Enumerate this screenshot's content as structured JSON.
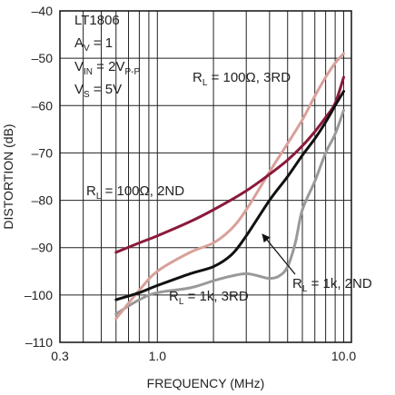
{
  "chart_data": {
    "type": "line",
    "title": "",
    "xlabel": "FREQUENCY (MHz)",
    "ylabel": "DISTORTION (dB)",
    "xscale": "log",
    "xlim": [
      0.3,
      11
    ],
    "ylim": [
      -110,
      -40
    ],
    "x_ticks": [
      0.3,
      1.0,
      10.0
    ],
    "x_tick_labels": [
      "0.3",
      "1.0",
      "10.0"
    ],
    "y_ticks": [
      -40,
      -50,
      -60,
      -70,
      -80,
      -90,
      -100,
      -110
    ],
    "y_tick_labels": [
      "–40",
      "–50",
      "–60",
      "–70",
      "–80",
      "–90",
      "–100",
      "–110"
    ],
    "grid": true,
    "conditions": [
      {
        "main": "LT1806",
        "sub": "",
        "tail": ""
      },
      {
        "main": "A",
        "sub": "V",
        "tail": " = 1"
      },
      {
        "main": "V",
        "sub": "IN",
        "tail": " = 2V",
        "sub2": "P-P"
      },
      {
        "main": "V",
        "sub": "S",
        "tail": " = 5V"
      }
    ],
    "series": [
      {
        "key": "rl100_2nd",
        "color": "#8b1a3a",
        "x": [
          0.6,
          0.8,
          1.0,
          1.5,
          2.0,
          3.0,
          4.0,
          5.0,
          6.0,
          7.0,
          8.0,
          9.0,
          10.0
        ],
        "y": [
          -91,
          -89,
          -87.5,
          -84.5,
          -82,
          -78,
          -74.5,
          -71.5,
          -68.5,
          -65.5,
          -62.5,
          -59.5,
          -54
        ]
      },
      {
        "key": "rl100_3rd",
        "color": "#d9a09a",
        "x": [
          0.6,
          0.8,
          1.0,
          1.5,
          2.0,
          2.5,
          3.0,
          4.0,
          5.0,
          6.0,
          7.0,
          8.0,
          9.0,
          10.0
        ],
        "y": [
          -105,
          -99,
          -95,
          -91,
          -89,
          -86,
          -82,
          -74,
          -68,
          -63,
          -58,
          -54,
          -51,
          -49
        ]
      },
      {
        "key": "rl1k_2nd",
        "color": "#111111",
        "x": [
          0.6,
          0.8,
          1.0,
          1.5,
          2.0,
          2.5,
          3.0,
          4.0,
          5.0,
          6.0,
          7.0,
          8.0,
          9.0,
          10.0
        ],
        "y": [
          -101,
          -99.5,
          -98,
          -95.5,
          -94,
          -91.5,
          -87.5,
          -80,
          -75,
          -70.5,
          -67,
          -63.5,
          -60,
          -57
        ]
      },
      {
        "key": "rl1k_3rd",
        "color": "#999999",
        "x": [
          0.6,
          0.8,
          1.0,
          1.5,
          2.0,
          2.5,
          3.0,
          3.5,
          4.0,
          4.5,
          5.0,
          5.5,
          6.0,
          7.0,
          8.0,
          9.0,
          10.0
        ],
        "y": [
          -104,
          -101,
          -99.5,
          -98.5,
          -97,
          -96,
          -95.5,
          -96,
          -96.5,
          -96,
          -94,
          -89,
          -82,
          -76,
          -70,
          -66,
          -61
        ]
      }
    ],
    "annotations": [
      {
        "key": "rl100_3rd",
        "main": "R",
        "sub": "L",
        "tail": " = 100Ω, 3RD"
      },
      {
        "key": "rl100_2nd",
        "main": "R",
        "sub": "L",
        "tail": " = 100Ω, 2ND"
      },
      {
        "key": "rl1k_3rd",
        "main": "R",
        "sub": "L",
        "tail": " = 1k, 3RD"
      },
      {
        "key": "rl1k_2nd",
        "main": "R",
        "sub": "L",
        "tail": " = 1k, 2ND"
      }
    ],
    "colors": {
      "grid": "#222222",
      "axis": "#111111",
      "text": "#222222",
      "arrow": "#111111"
    }
  }
}
